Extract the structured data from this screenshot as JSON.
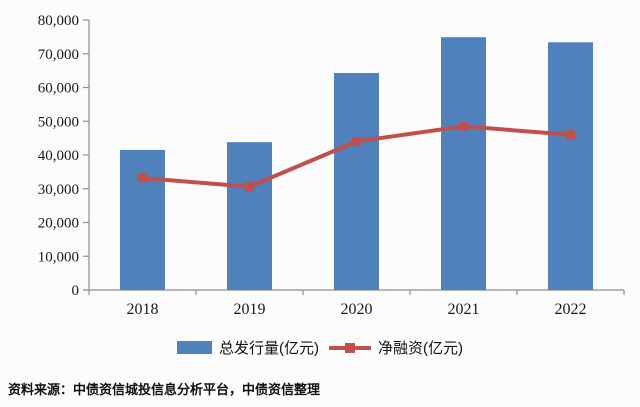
{
  "chart_data": {
    "type": "bar",
    "subtype": "bar-with-line-overlay",
    "categories": [
      "2018",
      "2019",
      "2020",
      "2021",
      "2022"
    ],
    "series": [
      {
        "name": "总发行量(亿元)",
        "type": "bar",
        "color": "#4F81BD",
        "values": [
          41500,
          43800,
          64300,
          74900,
          73400
        ]
      },
      {
        "name": "净融资(亿元)",
        "type": "line",
        "color": "#C0504D",
        "marker": "square",
        "values": [
          33200,
          30600,
          44000,
          48500,
          46000
        ]
      }
    ],
    "title": "",
    "xlabel": "",
    "ylabel": "",
    "ylim": [
      0,
      80000
    ],
    "y_tick_step": 10000,
    "y_tick_labels": [
      "0",
      "10,000",
      "20,000",
      "30,000",
      "40,000",
      "50,000",
      "60,000",
      "70,000",
      "80,000"
    ],
    "grid": false,
    "legend_position": "bottom"
  },
  "colors": {
    "bar": "#4F81BD",
    "line": "#C0504D",
    "axis": "#8f8f8f",
    "text": "#1a1a1a"
  },
  "source_note": "资料来源：中债资信城投信息分析平台，中债资信整理"
}
